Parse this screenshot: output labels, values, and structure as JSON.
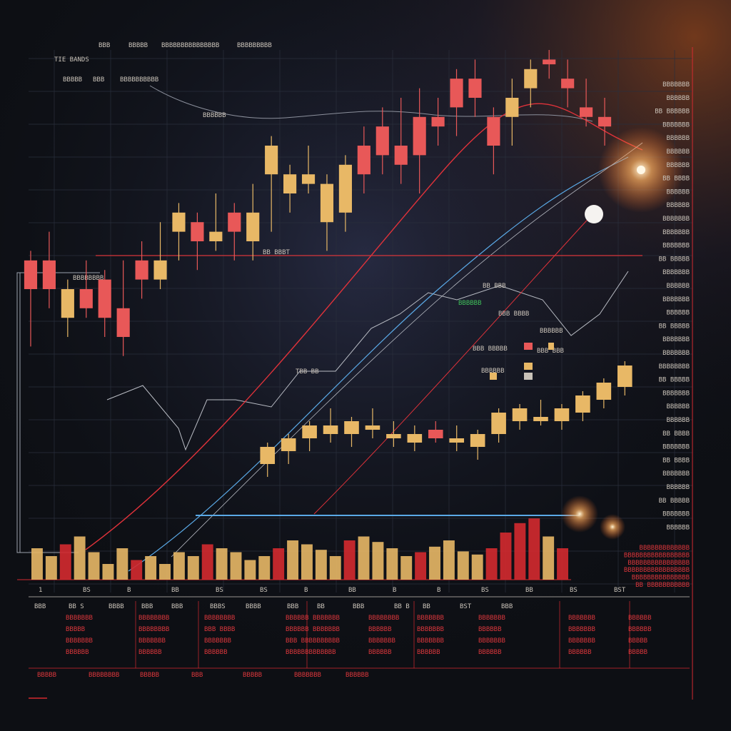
{
  "header": {
    "left_label": "TIE BANDS",
    "top_labels": [
      "BBB",
      "BBBBB",
      "BBBBBBBBBBBBBBB",
      "BBBBBBBBB"
    ],
    "sub_labels": [
      "BBBBB",
      "BBB",
      "BBBBBBBBBB"
    ]
  },
  "overlay_labels": {
    "mid_tag": "BBBBBB",
    "left_box_tag": "BBBBBBBB",
    "price_tag": "BB BBBT",
    "mid_lower_tag": "TBB BB",
    "green_tag": "BBBBBB",
    "cluster": [
      "BB BBB",
      "BBB BBBB",
      "BBBBBB",
      "BBB BBBBB",
      "BBB BBB",
      "BBBBBB"
    ]
  },
  "right_panel": [
    "BBBBBBB",
    "BBBBBB",
    "BB BBBBBB",
    "BBBBBBB",
    "BBBBBB",
    "BBBBBB",
    "BBBBBB",
    "BB BBBB",
    "BBBBBB",
    "BBBBBB",
    "BBBBBBB",
    "BBBBBBB",
    "BBBBBBB",
    "BB BBBBB",
    "BBBBBBB",
    "BBBBBB",
    "BBBBBBB",
    "BBBBBB",
    "BB BBBBB",
    "BBBBBBB",
    "BBBBBBB",
    "BBBBBBBB",
    "BB BBBBB",
    "BBBBBBB",
    "BBBBBB",
    "BBBBBB",
    "BB BBBB",
    "BBBBBBB",
    "BB BBBB",
    "BBBBBBB",
    "BBBBBB",
    "BB BBBBB",
    "BBBBBBB",
    "BBBBBB"
  ],
  "right_panel_red": [
    "BBBBBBBBBBBBB",
    "BBBBBBBBBBBBBBBBB",
    "BBBBBBBBBBBBBBBB",
    "BBBBBBBBBBBBBBBBB",
    "BBBBBBBBBBBBBBB",
    "BB BBBBBBBBBBB"
  ],
  "x_axis_labels": [
    "1",
    "BS",
    "B",
    "BB",
    "BS",
    "BS",
    "B",
    "BB",
    "B",
    "B",
    "BS",
    "BB",
    "BS",
    "BST"
  ],
  "table": {
    "headers": [
      "BBB",
      "BB S",
      "BBBB",
      "BBB",
      "BBB",
      "BBBS",
      "BBBB",
      "BBB",
      "BB",
      "BBB",
      "BB B",
      "BB",
      "BST",
      "BBB"
    ],
    "rows": [
      [
        "BBBBBBB",
        "BBBBBBBB",
        "BBBBBBBB",
        "BBBBBB",
        "BBBBBBB",
        "BBBBBBBB",
        "BBBBBBB",
        "BBBBBBB",
        "BBBBBBB",
        "BBBBBB"
      ],
      [
        "BBBBB",
        "BBBBBBBB",
        "BBB BBBB",
        "BBBBBB",
        "BBBBBBB",
        "BBBBBB",
        "BBBBBBB",
        "BBBBBB",
        "BBBBBBB",
        "BBBBBB"
      ],
      [
        "BBBBBBB",
        "BBBBBBB",
        "BBBBBBB",
        "BBB BBB",
        "BBBBBBB",
        "BBBBBBB",
        "BBBBBBB",
        "BBBBBBB",
        "BBBBBBB",
        "BBBBB"
      ],
      [
        "BBBBBB",
        "BBBBBB",
        "BBBBBB",
        "BBBBBBB",
        "BBBBBB",
        "BBBBBB",
        "BBBBBB",
        "BBBBBB",
        "BBBBBB",
        "BBBBB"
      ]
    ],
    "footer": [
      "BBBBB",
      "BBBBBBBB",
      "BBBBB",
      "BBB",
      "BBBBB",
      "BBBBBBB",
      "BBBBBB"
    ]
  },
  "colors": {
    "background": "#0d0f14",
    "grid": "#2a2f3c",
    "bull": "#e8b866",
    "bear": "#e85858",
    "bear_deep": "#d42a2f",
    "accent_blue": "#5aa9e6",
    "accent_red": "#e0323a",
    "white_line": "#b9bcc4",
    "glow": "#ffd28a"
  },
  "chart_data": {
    "type": "candlestick",
    "upper_series": [
      {
        "o": 0.5,
        "h": 0.58,
        "l": 0.38,
        "c": 0.56,
        "color": "bear"
      },
      {
        "o": 0.56,
        "h": 0.62,
        "l": 0.46,
        "c": 0.5,
        "color": "bear"
      },
      {
        "o": 0.44,
        "h": 0.52,
        "l": 0.4,
        "c": 0.5,
        "color": "bull"
      },
      {
        "o": 0.5,
        "h": 0.56,
        "l": 0.44,
        "c": 0.46,
        "color": "bear"
      },
      {
        "o": 0.44,
        "h": 0.54,
        "l": 0.4,
        "c": 0.52,
        "color": "bear"
      },
      {
        "o": 0.46,
        "h": 0.56,
        "l": 0.36,
        "c": 0.4,
        "color": "bear"
      },
      {
        "o": 0.52,
        "h": 0.6,
        "l": 0.48,
        "c": 0.56,
        "color": "bear"
      },
      {
        "o": 0.56,
        "h": 0.64,
        "l": 0.5,
        "c": 0.52,
        "color": "bull"
      },
      {
        "o": 0.62,
        "h": 0.68,
        "l": 0.56,
        "c": 0.66,
        "color": "bull"
      },
      {
        "o": 0.6,
        "h": 0.66,
        "l": 0.54,
        "c": 0.64,
        "color": "bear"
      },
      {
        "o": 0.62,
        "h": 0.7,
        "l": 0.58,
        "c": 0.6,
        "color": "bull"
      },
      {
        "o": 0.62,
        "h": 0.68,
        "l": 0.56,
        "c": 0.66,
        "color": "bear"
      },
      {
        "o": 0.66,
        "h": 0.72,
        "l": 0.56,
        "c": 0.6,
        "color": "bull"
      },
      {
        "o": 0.74,
        "h": 0.82,
        "l": 0.62,
        "c": 0.8,
        "color": "bull"
      },
      {
        "o": 0.7,
        "h": 0.76,
        "l": 0.66,
        "c": 0.74,
        "color": "bull"
      },
      {
        "o": 0.74,
        "h": 0.8,
        "l": 0.7,
        "c": 0.72,
        "color": "bull"
      },
      {
        "o": 0.64,
        "h": 0.74,
        "l": 0.58,
        "c": 0.72,
        "color": "bull"
      },
      {
        "o": 0.66,
        "h": 0.78,
        "l": 0.62,
        "c": 0.76,
        "color": "bull"
      },
      {
        "o": 0.74,
        "h": 0.84,
        "l": 0.7,
        "c": 0.8,
        "color": "bear"
      },
      {
        "o": 0.78,
        "h": 0.88,
        "l": 0.74,
        "c": 0.84,
        "color": "bear"
      },
      {
        "o": 0.8,
        "h": 0.9,
        "l": 0.72,
        "c": 0.76,
        "color": "bear"
      },
      {
        "o": 0.78,
        "h": 0.92,
        "l": 0.7,
        "c": 0.86,
        "color": "bear"
      },
      {
        "o": 0.84,
        "h": 0.9,
        "l": 0.8,
        "c": 0.86,
        "color": "bear"
      },
      {
        "o": 0.88,
        "h": 0.96,
        "l": 0.82,
        "c": 0.94,
        "color": "bear"
      },
      {
        "o": 0.94,
        "h": 0.98,
        "l": 0.86,
        "c": 0.9,
        "color": "bear"
      },
      {
        "o": 0.8,
        "h": 0.88,
        "l": 0.74,
        "c": 0.86,
        "color": "bear"
      },
      {
        "o": 0.86,
        "h": 0.94,
        "l": 0.8,
        "c": 0.9,
        "color": "bull"
      },
      {
        "o": 0.92,
        "h": 0.98,
        "l": 0.88,
        "c": 0.96,
        "color": "bull"
      },
      {
        "o": 0.98,
        "h": 1.0,
        "l": 0.94,
        "c": 0.97,
        "color": "bear"
      },
      {
        "o": 0.94,
        "h": 0.98,
        "l": 0.88,
        "c": 0.92,
        "color": "bear"
      },
      {
        "o": 0.88,
        "h": 0.94,
        "l": 0.84,
        "c": 0.86,
        "color": "bear"
      },
      {
        "o": 0.84,
        "h": 0.9,
        "l": 0.8,
        "c": 0.86,
        "color": "bear"
      }
    ],
    "lower_series": [
      {
        "o": 0.3,
        "h": 0.4,
        "l": 0.24,
        "c": 0.38,
        "color": "bull"
      },
      {
        "o": 0.36,
        "h": 0.44,
        "l": 0.3,
        "c": 0.42,
        "color": "bull"
      },
      {
        "o": 0.42,
        "h": 0.5,
        "l": 0.36,
        "c": 0.48,
        "color": "bull"
      },
      {
        "o": 0.48,
        "h": 0.56,
        "l": 0.4,
        "c": 0.44,
        "color": "bull"
      },
      {
        "o": 0.44,
        "h": 0.52,
        "l": 0.38,
        "c": 0.5,
        "color": "bull"
      },
      {
        "o": 0.48,
        "h": 0.56,
        "l": 0.42,
        "c": 0.46,
        "color": "bull"
      },
      {
        "o": 0.44,
        "h": 0.5,
        "l": 0.38,
        "c": 0.42,
        "color": "bull"
      },
      {
        "o": 0.4,
        "h": 0.48,
        "l": 0.36,
        "c": 0.44,
        "color": "bull"
      },
      {
        "o": 0.42,
        "h": 0.5,
        "l": 0.4,
        "c": 0.46,
        "color": "bear"
      },
      {
        "o": 0.42,
        "h": 0.48,
        "l": 0.36,
        "c": 0.4,
        "color": "bull"
      },
      {
        "o": 0.38,
        "h": 0.46,
        "l": 0.32,
        "c": 0.44,
        "color": "bull"
      },
      {
        "o": 0.44,
        "h": 0.56,
        "l": 0.4,
        "c": 0.54,
        "color": "bull"
      },
      {
        "o": 0.5,
        "h": 0.58,
        "l": 0.46,
        "c": 0.56,
        "color": "bull"
      },
      {
        "o": 0.52,
        "h": 0.6,
        "l": 0.48,
        "c": 0.5,
        "color": "bull"
      },
      {
        "o": 0.5,
        "h": 0.58,
        "l": 0.46,
        "c": 0.56,
        "color": "bull"
      },
      {
        "o": 0.54,
        "h": 0.64,
        "l": 0.5,
        "c": 0.62,
        "color": "bull"
      },
      {
        "o": 0.6,
        "h": 0.7,
        "l": 0.56,
        "c": 0.68,
        "color": "bull"
      },
      {
        "o": 0.66,
        "h": 0.78,
        "l": 0.62,
        "c": 0.76,
        "color": "bull"
      }
    ],
    "volume_series": [
      0.4,
      0.3,
      0.45,
      0.55,
      0.35,
      0.2,
      0.4,
      0.25,
      0.3,
      0.2,
      0.35,
      0.3,
      0.45,
      0.4,
      0.35,
      0.25,
      0.3,
      0.4,
      0.5,
      0.45,
      0.38,
      0.3,
      0.5,
      0.55,
      0.48,
      0.4,
      0.3,
      0.35,
      0.42,
      0.5,
      0.36,
      0.32,
      0.4,
      0.6,
      0.72,
      0.78,
      0.55,
      0.4
    ]
  }
}
